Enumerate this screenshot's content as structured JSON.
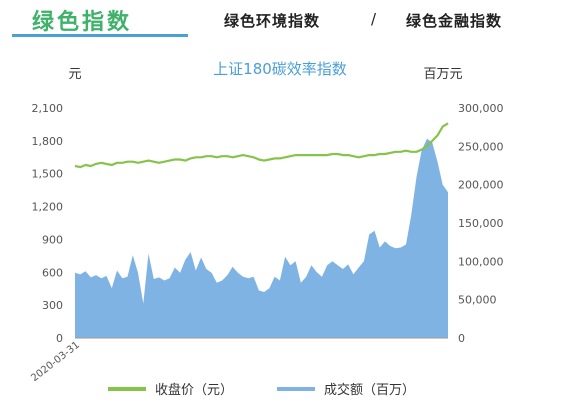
{
  "header": {
    "brand": "绿色指数",
    "nav": [
      "绿色环境指数",
      "绿色金融指数"
    ],
    "separator": "/"
  },
  "colors": {
    "line": "#86c34a",
    "area": "#7fb3e3",
    "title": "#4a9fd8",
    "brand": "#3fb26a"
  },
  "chart_data": {
    "type": "line",
    "title": "上证180碳效率指数",
    "ylabel_left": "元",
    "ylabel_right": "百万元",
    "y_left_ticks": [
      "2,100",
      "1,800",
      "1,500",
      "1,200",
      "900",
      "600",
      "300",
      "0"
    ],
    "y_right_ticks": [
      "300,000",
      "250,000",
      "200,000",
      "150,000",
      "100,000",
      "50,000",
      "0"
    ],
    "ylim_left": [
      0,
      2100
    ],
    "ylim_right": [
      0,
      300000
    ],
    "x_start_label": "2020-03-31",
    "legend_position": "bottom",
    "series": [
      {
        "name": "收盘价（元）",
        "axis": "left",
        "values": [
          1570,
          1560,
          1580,
          1570,
          1590,
          1600,
          1590,
          1580,
          1600,
          1600,
          1610,
          1610,
          1600,
          1610,
          1620,
          1610,
          1600,
          1610,
          1620,
          1630,
          1630,
          1620,
          1640,
          1650,
          1650,
          1660,
          1660,
          1650,
          1660,
          1660,
          1650,
          1660,
          1670,
          1660,
          1650,
          1630,
          1620,
          1630,
          1640,
          1640,
          1650,
          1660,
          1670,
          1670,
          1670,
          1670,
          1670,
          1670,
          1670,
          1680,
          1680,
          1670,
          1670,
          1660,
          1650,
          1660,
          1670,
          1670,
          1680,
          1680,
          1690,
          1700,
          1700,
          1710,
          1700,
          1700,
          1720,
          1750,
          1800,
          1850,
          1930,
          1960
        ]
      },
      {
        "name": "成交额（百万）",
        "axis": "right",
        "values": [
          85000,
          83000,
          87000,
          79000,
          82000,
          78000,
          81000,
          65000,
          88000,
          78000,
          80000,
          108000,
          85000,
          45000,
          110000,
          77000,
          79000,
          75000,
          78000,
          92000,
          85000,
          102000,
          112000,
          88000,
          105000,
          90000,
          85000,
          72000,
          75000,
          82000,
          93000,
          85000,
          80000,
          78000,
          80000,
          62000,
          60000,
          65000,
          80000,
          75000,
          106000,
          95000,
          100000,
          72000,
          80000,
          95000,
          86000,
          80000,
          95000,
          100000,
          95000,
          90000,
          96000,
          83000,
          92000,
          100000,
          135000,
          140000,
          118000,
          126000,
          120000,
          117000,
          118000,
          122000,
          160000,
          210000,
          245000,
          260000,
          255000,
          230000,
          200000,
          190000
        ]
      }
    ]
  }
}
